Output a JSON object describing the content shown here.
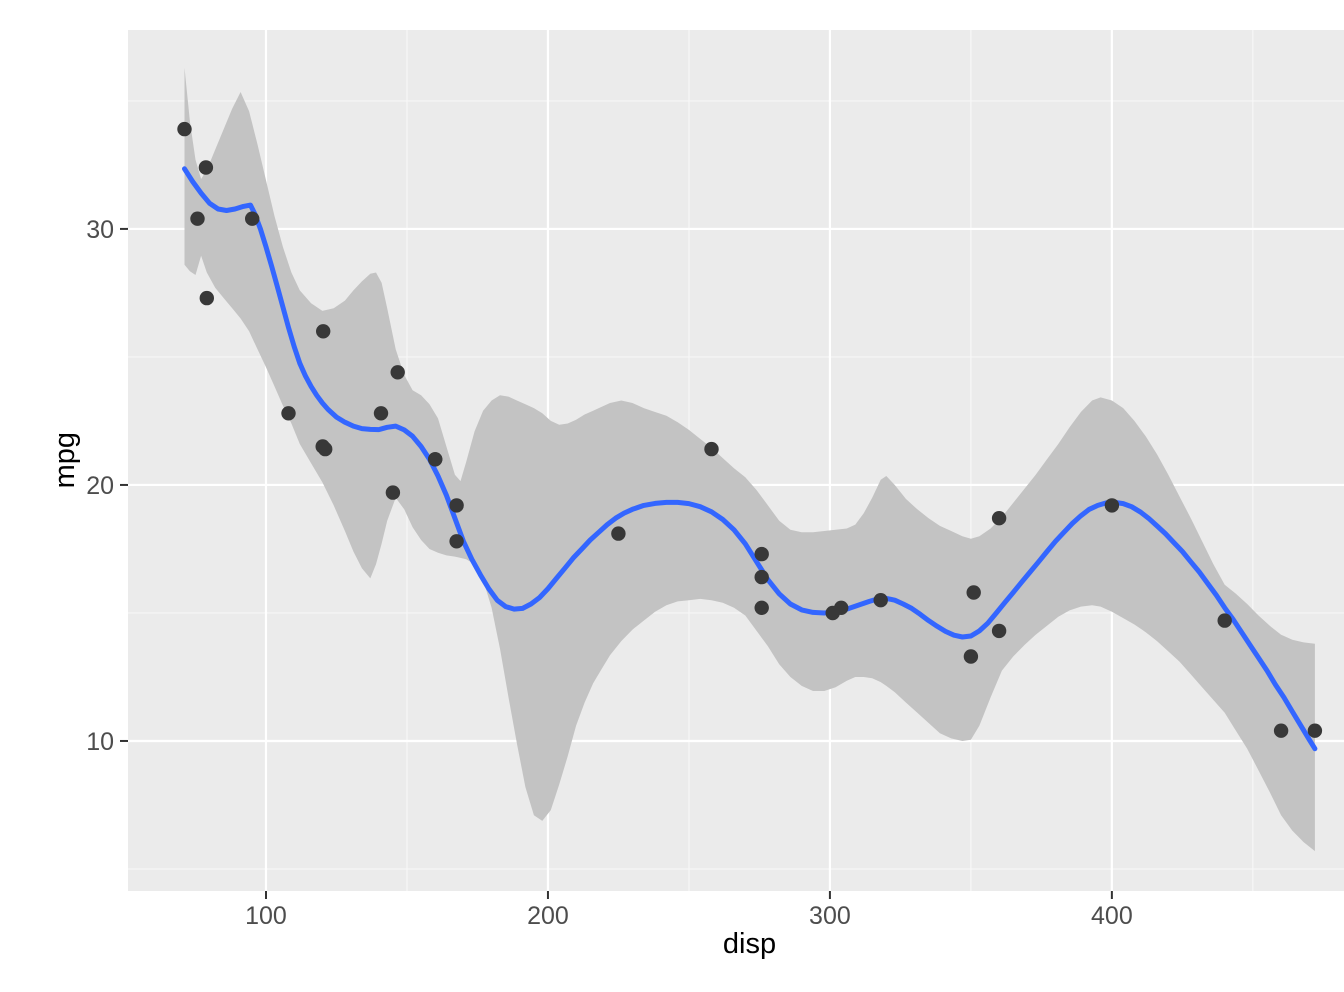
{
  "chart_data": {
    "type": "scatter",
    "title": "",
    "xlabel": "disp",
    "ylabel": "mpg",
    "x_domain": [
      51.06,
      491.9
    ],
    "y_domain": [
      4.14,
      37.77
    ],
    "x_ticks": [
      100,
      200,
      300,
      400
    ],
    "x_minor_ticks": [
      150,
      250,
      350,
      450
    ],
    "y_ticks": [
      10,
      20,
      30
    ],
    "y_minor_ticks": [
      5,
      15,
      25,
      35
    ],
    "grid": true,
    "legend_position": "none",
    "colors": {
      "panel_background": "#EBEBEB",
      "grid_major": "#FFFFFF",
      "grid_minor": "#F7F7F7",
      "ribbon_fill": "#C3C3C3",
      "smooth_line": "#3366FF",
      "point_fill": "#383838",
      "tick_mark": "#333333",
      "tick_label": "#4D4D4D",
      "axis_title": "#000000",
      "page_background": "#FFFFFF"
    },
    "points": [
      [
        160,
        21
      ],
      [
        160,
        21
      ],
      [
        108,
        22.8
      ],
      [
        258,
        21.4
      ],
      [
        360,
        18.7
      ],
      [
        225,
        18.1
      ],
      [
        360,
        14.3
      ],
      [
        146.7,
        24.4
      ],
      [
        140.8,
        22.8
      ],
      [
        167.6,
        19.2
      ],
      [
        167.6,
        17.8
      ],
      [
        275.8,
        16.4
      ],
      [
        275.8,
        17.3
      ],
      [
        275.8,
        15.2
      ],
      [
        472,
        10.4
      ],
      [
        460,
        10.4
      ],
      [
        440,
        14.7
      ],
      [
        78.7,
        32.4
      ],
      [
        75.7,
        30.4
      ],
      [
        71.1,
        33.9
      ],
      [
        120.1,
        21.5
      ],
      [
        318,
        15.5
      ],
      [
        304,
        15.2
      ],
      [
        350,
        13.3
      ],
      [
        400,
        19.2
      ],
      [
        79,
        27.3
      ],
      [
        120.3,
        26
      ],
      [
        95.1,
        30.4
      ],
      [
        351,
        15.8
      ],
      [
        145,
        19.7
      ],
      [
        301,
        15
      ],
      [
        121,
        21.4
      ]
    ],
    "smooth_line": [
      [
        71.1,
        32.35
      ],
      [
        74,
        31.85
      ],
      [
        77,
        31.4
      ],
      [
        80,
        31.0
      ],
      [
        83,
        30.78
      ],
      [
        86,
        30.72
      ],
      [
        89,
        30.78
      ],
      [
        92,
        30.88
      ],
      [
        94.5,
        30.93
      ],
      [
        96,
        30.6
      ],
      [
        98,
        30.0
      ],
      [
        100,
        29.3
      ],
      [
        102,
        28.55
      ],
      [
        104,
        27.75
      ],
      [
        106,
        26.95
      ],
      [
        108,
        26.15
      ],
      [
        110,
        25.4
      ],
      [
        112,
        24.75
      ],
      [
        114,
        24.25
      ],
      [
        116,
        23.85
      ],
      [
        118,
        23.5
      ],
      [
        120,
        23.2
      ],
      [
        122,
        22.95
      ],
      [
        125,
        22.65
      ],
      [
        128,
        22.45
      ],
      [
        131,
        22.3
      ],
      [
        134,
        22.2
      ],
      [
        137,
        22.17
      ],
      [
        140,
        22.16
      ],
      [
        143,
        22.25
      ],
      [
        146,
        22.3
      ],
      [
        149,
        22.15
      ],
      [
        152,
        21.9
      ],
      [
        155,
        21.5
      ],
      [
        158,
        21.0
      ],
      [
        161,
        20.35
      ],
      [
        164,
        19.6
      ],
      [
        167,
        18.7
      ],
      [
        170,
        17.8
      ],
      [
        173,
        17.1
      ],
      [
        176,
        16.5
      ],
      [
        179,
        15.95
      ],
      [
        182,
        15.5
      ],
      [
        185,
        15.25
      ],
      [
        188,
        15.15
      ],
      [
        191,
        15.18
      ],
      [
        194,
        15.35
      ],
      [
        197,
        15.6
      ],
      [
        200,
        15.95
      ],
      [
        203,
        16.35
      ],
      [
        206,
        16.75
      ],
      [
        209,
        17.15
      ],
      [
        212,
        17.5
      ],
      [
        215,
        17.85
      ],
      [
        218,
        18.15
      ],
      [
        221,
        18.45
      ],
      [
        224,
        18.7
      ],
      [
        227,
        18.9
      ],
      [
        230,
        19.05
      ],
      [
        234,
        19.2
      ],
      [
        238,
        19.28
      ],
      [
        242,
        19.32
      ],
      [
        246,
        19.32
      ],
      [
        250,
        19.27
      ],
      [
        254,
        19.15
      ],
      [
        258,
        18.95
      ],
      [
        262,
        18.65
      ],
      [
        266,
        18.25
      ],
      [
        270,
        17.7
      ],
      [
        274,
        17.0
      ],
      [
        278,
        16.3
      ],
      [
        282,
        15.75
      ],
      [
        286,
        15.35
      ],
      [
        290,
        15.12
      ],
      [
        294,
        15.02
      ],
      [
        298,
        15.0
      ],
      [
        302,
        15.05
      ],
      [
        306,
        15.15
      ],
      [
        310,
        15.3
      ],
      [
        314,
        15.45
      ],
      [
        317,
        15.55
      ],
      [
        320,
        15.57
      ],
      [
        323,
        15.5
      ],
      [
        326,
        15.35
      ],
      [
        329,
        15.18
      ],
      [
        332,
        14.95
      ],
      [
        335,
        14.7
      ],
      [
        338,
        14.48
      ],
      [
        341,
        14.28
      ],
      [
        344,
        14.13
      ],
      [
        347,
        14.06
      ],
      [
        350,
        14.1
      ],
      [
        353,
        14.3
      ],
      [
        356,
        14.6
      ],
      [
        359,
        15.0
      ],
      [
        362,
        15.4
      ],
      [
        365,
        15.8
      ],
      [
        368,
        16.2
      ],
      [
        371,
        16.6
      ],
      [
        374,
        17.0
      ],
      [
        377,
        17.4
      ],
      [
        380,
        17.8
      ],
      [
        383,
        18.15
      ],
      [
        386,
        18.5
      ],
      [
        389,
        18.8
      ],
      [
        392,
        19.05
      ],
      [
        395,
        19.2
      ],
      [
        398,
        19.3
      ],
      [
        401,
        19.32
      ],
      [
        404,
        19.27
      ],
      [
        407,
        19.15
      ],
      [
        410,
        18.95
      ],
      [
        413,
        18.7
      ],
      [
        416,
        18.4
      ],
      [
        419,
        18.1
      ],
      [
        422,
        17.75
      ],
      [
        425,
        17.4
      ],
      [
        428,
        17.0
      ],
      [
        431,
        16.6
      ],
      [
        434,
        16.15
      ],
      [
        437,
        15.7
      ],
      [
        440,
        15.2
      ],
      [
        443,
        14.75
      ],
      [
        446,
        14.25
      ],
      [
        449,
        13.75
      ],
      [
        452,
        13.25
      ],
      [
        455,
        12.75
      ],
      [
        458,
        12.2
      ],
      [
        461,
        11.7
      ],
      [
        464,
        11.15
      ],
      [
        467,
        10.6
      ],
      [
        470,
        10.05
      ],
      [
        472,
        9.7
      ]
    ],
    "ribbon": [
      [
        71.1,
        28.6,
        36.3
      ],
      [
        73,
        28.35,
        34.2
      ],
      [
        75,
        28.2,
        32.7
      ],
      [
        77,
        28.95,
        31.95
      ],
      [
        79,
        28.3,
        32.3
      ],
      [
        82,
        27.7,
        33.1
      ],
      [
        85,
        27.3,
        33.9
      ],
      [
        88,
        26.9,
        34.7
      ],
      [
        91,
        26.5,
        35.35
      ],
      [
        94,
        26.0,
        34.6
      ],
      [
        97,
        25.3,
        33.3
      ],
      [
        100,
        24.6,
        31.9
      ],
      [
        103,
        23.85,
        30.5
      ],
      [
        106,
        23.1,
        29.3
      ],
      [
        109,
        22.4,
        28.3
      ],
      [
        112,
        21.6,
        27.6
      ],
      [
        116,
        20.85,
        27.1
      ],
      [
        120,
        20.1,
        26.8
      ],
      [
        124,
        19.2,
        26.9
      ],
      [
        128,
        18.2,
        27.2
      ],
      [
        131,
        17.4,
        27.6
      ],
      [
        134,
        16.75,
        27.95
      ],
      [
        137,
        16.35,
        28.25
      ],
      [
        139,
        16.9,
        28.3
      ],
      [
        141,
        17.7,
        27.9
      ],
      [
        143,
        18.6,
        26.9
      ],
      [
        146,
        19.5,
        25.3
      ],
      [
        149,
        19.05,
        24.3
      ],
      [
        152,
        18.35,
        23.7
      ],
      [
        155,
        17.85,
        23.5
      ],
      [
        158,
        17.5,
        23.15
      ],
      [
        161,
        17.35,
        22.6
      ],
      [
        164,
        17.25,
        21.5
      ],
      [
        167,
        17.2,
        20.4
      ],
      [
        169,
        17.15,
        20.15
      ],
      [
        171,
        17.1,
        20.9
      ],
      [
        174,
        16.9,
        22.1
      ],
      [
        177,
        16.3,
        22.9
      ],
      [
        180,
        15.2,
        23.3
      ],
      [
        183,
        13.6,
        23.5
      ],
      [
        186,
        11.7,
        23.45
      ],
      [
        189,
        9.9,
        23.3
      ],
      [
        192,
        8.2,
        23.15
      ],
      [
        195,
        7.1,
        23.0
      ],
      [
        198,
        6.88,
        22.8
      ],
      [
        201,
        7.3,
        22.5
      ],
      [
        204,
        8.3,
        22.35
      ],
      [
        207,
        9.4,
        22.4
      ],
      [
        210,
        10.6,
        22.55
      ],
      [
        213,
        11.5,
        22.75
      ],
      [
        216,
        12.25,
        22.9
      ],
      [
        219,
        12.8,
        23.05
      ],
      [
        222,
        13.35,
        23.2
      ],
      [
        226,
        13.9,
        23.3
      ],
      [
        230,
        14.35,
        23.2
      ],
      [
        234,
        14.7,
        23.0
      ],
      [
        238,
        15.05,
        22.85
      ],
      [
        242,
        15.3,
        22.7
      ],
      [
        246,
        15.45,
        22.45
      ],
      [
        250,
        15.5,
        22.15
      ],
      [
        254,
        15.55,
        21.8
      ],
      [
        258,
        15.5,
        21.45
      ],
      [
        262,
        15.4,
        21.05
      ],
      [
        266,
        15.2,
        20.65
      ],
      [
        270,
        14.9,
        20.3
      ],
      [
        274,
        14.3,
        19.8
      ],
      [
        278,
        13.7,
        19.2
      ],
      [
        282,
        13.0,
        18.6
      ],
      [
        286,
        12.5,
        18.25
      ],
      [
        290,
        12.15,
        18.15
      ],
      [
        294,
        11.95,
        18.15
      ],
      [
        298,
        11.95,
        18.2
      ],
      [
        302,
        12.1,
        18.25
      ],
      [
        306,
        12.35,
        18.3
      ],
      [
        309,
        12.5,
        18.45
      ],
      [
        312,
        12.5,
        18.9
      ],
      [
        315,
        12.45,
        19.5
      ],
      [
        318,
        12.3,
        20.2
      ],
      [
        320,
        12.15,
        20.35
      ],
      [
        323,
        11.9,
        20.0
      ],
      [
        327,
        11.5,
        19.45
      ],
      [
        331,
        11.1,
        19.05
      ],
      [
        335,
        10.7,
        18.7
      ],
      [
        339,
        10.3,
        18.4
      ],
      [
        343,
        10.1,
        18.2
      ],
      [
        347,
        10.0,
        18.0
      ],
      [
        350,
        10.05,
        17.9
      ],
      [
        353,
        10.6,
        18.0
      ],
      [
        357,
        11.7,
        18.3
      ],
      [
        361,
        12.75,
        18.75
      ],
      [
        365,
        13.3,
        19.3
      ],
      [
        369,
        13.75,
        19.85
      ],
      [
        373,
        14.15,
        20.4
      ],
      [
        377,
        14.5,
        21.0
      ],
      [
        381,
        14.85,
        21.6
      ],
      [
        385,
        15.1,
        22.25
      ],
      [
        389,
        15.25,
        22.85
      ],
      [
        393,
        15.3,
        23.3
      ],
      [
        396,
        15.25,
        23.42
      ],
      [
        400,
        15.05,
        23.3
      ],
      [
        404,
        14.8,
        23.0
      ],
      [
        408,
        14.55,
        22.5
      ],
      [
        412,
        14.25,
        21.9
      ],
      [
        416,
        13.9,
        21.2
      ],
      [
        420,
        13.5,
        20.4
      ],
      [
        424,
        13.1,
        19.55
      ],
      [
        428,
        12.6,
        18.7
      ],
      [
        432,
        12.1,
        17.8
      ],
      [
        436,
        11.6,
        16.9
      ],
      [
        440,
        11.1,
        16.1
      ],
      [
        444,
        10.4,
        15.75
      ],
      [
        448,
        9.7,
        15.35
      ],
      [
        452,
        8.85,
        14.9
      ],
      [
        456,
        8.0,
        14.5
      ],
      [
        460,
        7.1,
        14.15
      ],
      [
        464,
        6.5,
        13.95
      ],
      [
        468,
        6.05,
        13.85
      ],
      [
        472,
        5.7,
        13.8
      ]
    ]
  }
}
